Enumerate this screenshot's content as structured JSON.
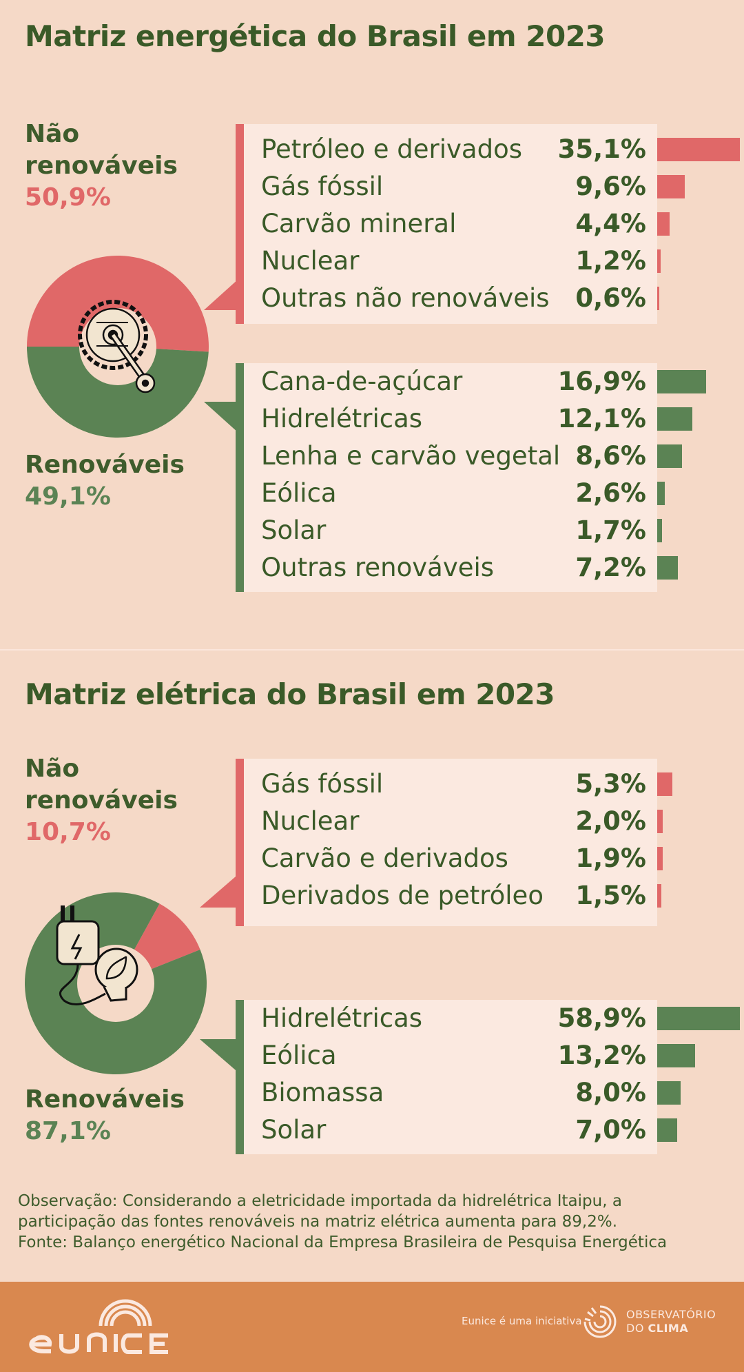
{
  "energy": {
    "title": "Matriz energética do Brasil em 2023",
    "nonrenewable": {
      "name_line1": "Não",
      "name_line2": "renováveis",
      "percent": "50,9%",
      "items": [
        {
          "label": "Petróleo e derivados",
          "value": "35,1%",
          "num": 35.1
        },
        {
          "label": "Gás fóssil",
          "value": "9,6%",
          "num": 9.6
        },
        {
          "label": "Carvão mineral",
          "value": "4,4%",
          "num": 4.4
        },
        {
          "label": "Nuclear",
          "value": "1,2%",
          "num": 1.2
        },
        {
          "label": "Outras não renováveis",
          "value": "0,6%",
          "num": 0.6
        }
      ]
    },
    "renewable": {
      "name": "Renováveis",
      "percent": "49,1%",
      "items": [
        {
          "label": "Cana-de-açúcar",
          "value": "16,9%",
          "num": 16.9
        },
        {
          "label": "Hidrelétricas",
          "value": "12,1%",
          "num": 12.1
        },
        {
          "label": "Lenha e carvão vegetal",
          "value": "8,6%",
          "num": 8.6
        },
        {
          "label": "Eólica",
          "value": "2,6%",
          "num": 2.6
        },
        {
          "label": "Solar",
          "value": "1,7%",
          "num": 1.7
        },
        {
          "label": "Outras renováveis",
          "value": "7,2%",
          "num": 7.2
        }
      ]
    }
  },
  "electric": {
    "title": "Matriz elétrica do Brasil em 2023",
    "nonrenewable": {
      "name_line1": "Não",
      "name_line2": "renováveis",
      "percent": "10,7%",
      "items": [
        {
          "label": "Gás fóssil",
          "value": "5,3%",
          "num": 5.3
        },
        {
          "label": "Nuclear",
          "value": "2,0%",
          "num": 2.0
        },
        {
          "label": "Carvão e derivados",
          "value": "1,9%",
          "num": 1.9
        },
        {
          "label": "Derivados de petróleo",
          "value": "1,5%",
          "num": 1.5
        }
      ]
    },
    "renewable": {
      "name": "Renováveis",
      "percent": "87,1%",
      "items": [
        {
          "label": "Hidrelétricas",
          "value": "58,9%",
          "num": 58.9
        },
        {
          "label": "Eólica",
          "value": "13,2%",
          "num": 13.2
        },
        {
          "label": "Biomassa",
          "value": "8,0%",
          "num": 8.0
        },
        {
          "label": "Solar",
          "value": "7,0%",
          "num": 7.0
        }
      ]
    }
  },
  "note": {
    "line1": "Observação: Considerando a eletricidade importada da hidrelétrica Itaipu, a",
    "line2": "participação das fontes renováveis na matriz elétrica aumenta para 89,2%.",
    "line3": "Fonte: Balanço energético Nacional da Empresa Brasileira de Pesquisa Energética"
  },
  "footer": {
    "tagline": "Eunice é uma iniciativa",
    "partner_line1": "OBSERVATÓRIO",
    "partner_line2_a": "DO ",
    "partner_line2_b": "CLIMA"
  },
  "colors": {
    "background": "#f5d9c7",
    "panel": "#fbe9e0",
    "nonrenewable": "#e06868",
    "renewable": "#5b8354",
    "text": "#3a5a28",
    "footer": "#d9884f"
  },
  "chart_data": [
    {
      "type": "pie",
      "title": "Matriz energética do Brasil em 2023",
      "categories": [
        "Não renováveis",
        "Renováveis"
      ],
      "values": [
        50.9,
        49.1
      ]
    },
    {
      "type": "bar",
      "title": "Matriz energética do Brasil em 2023",
      "categories": [
        "Petróleo e derivados",
        "Gás fóssil",
        "Carvão mineral",
        "Nuclear",
        "Outras não renováveis",
        "Cana-de-açúcar",
        "Hidrelétricas",
        "Lenha e carvão vegetal",
        "Eólica",
        "Solar",
        "Outras renováveis"
      ],
      "values": [
        35.1,
        9.6,
        4.4,
        1.2,
        0.6,
        16.9,
        12.1,
        8.6,
        2.6,
        1.7,
        7.2
      ]
    },
    {
      "type": "pie",
      "title": "Matriz elétrica do Brasil em 2023",
      "categories": [
        "Não renováveis",
        "Renováveis"
      ],
      "values": [
        10.7,
        87.1
      ]
    },
    {
      "type": "bar",
      "title": "Matriz elétrica do Brasil em 2023",
      "categories": [
        "Gás fóssil",
        "Nuclear",
        "Carvão e derivados",
        "Derivados de petróleo",
        "Hidrelétricas",
        "Eólica",
        "Biomassa",
        "Solar"
      ],
      "values": [
        5.3,
        2.0,
        1.9,
        1.5,
        58.9,
        13.2,
        8.0,
        7.0
      ]
    }
  ]
}
